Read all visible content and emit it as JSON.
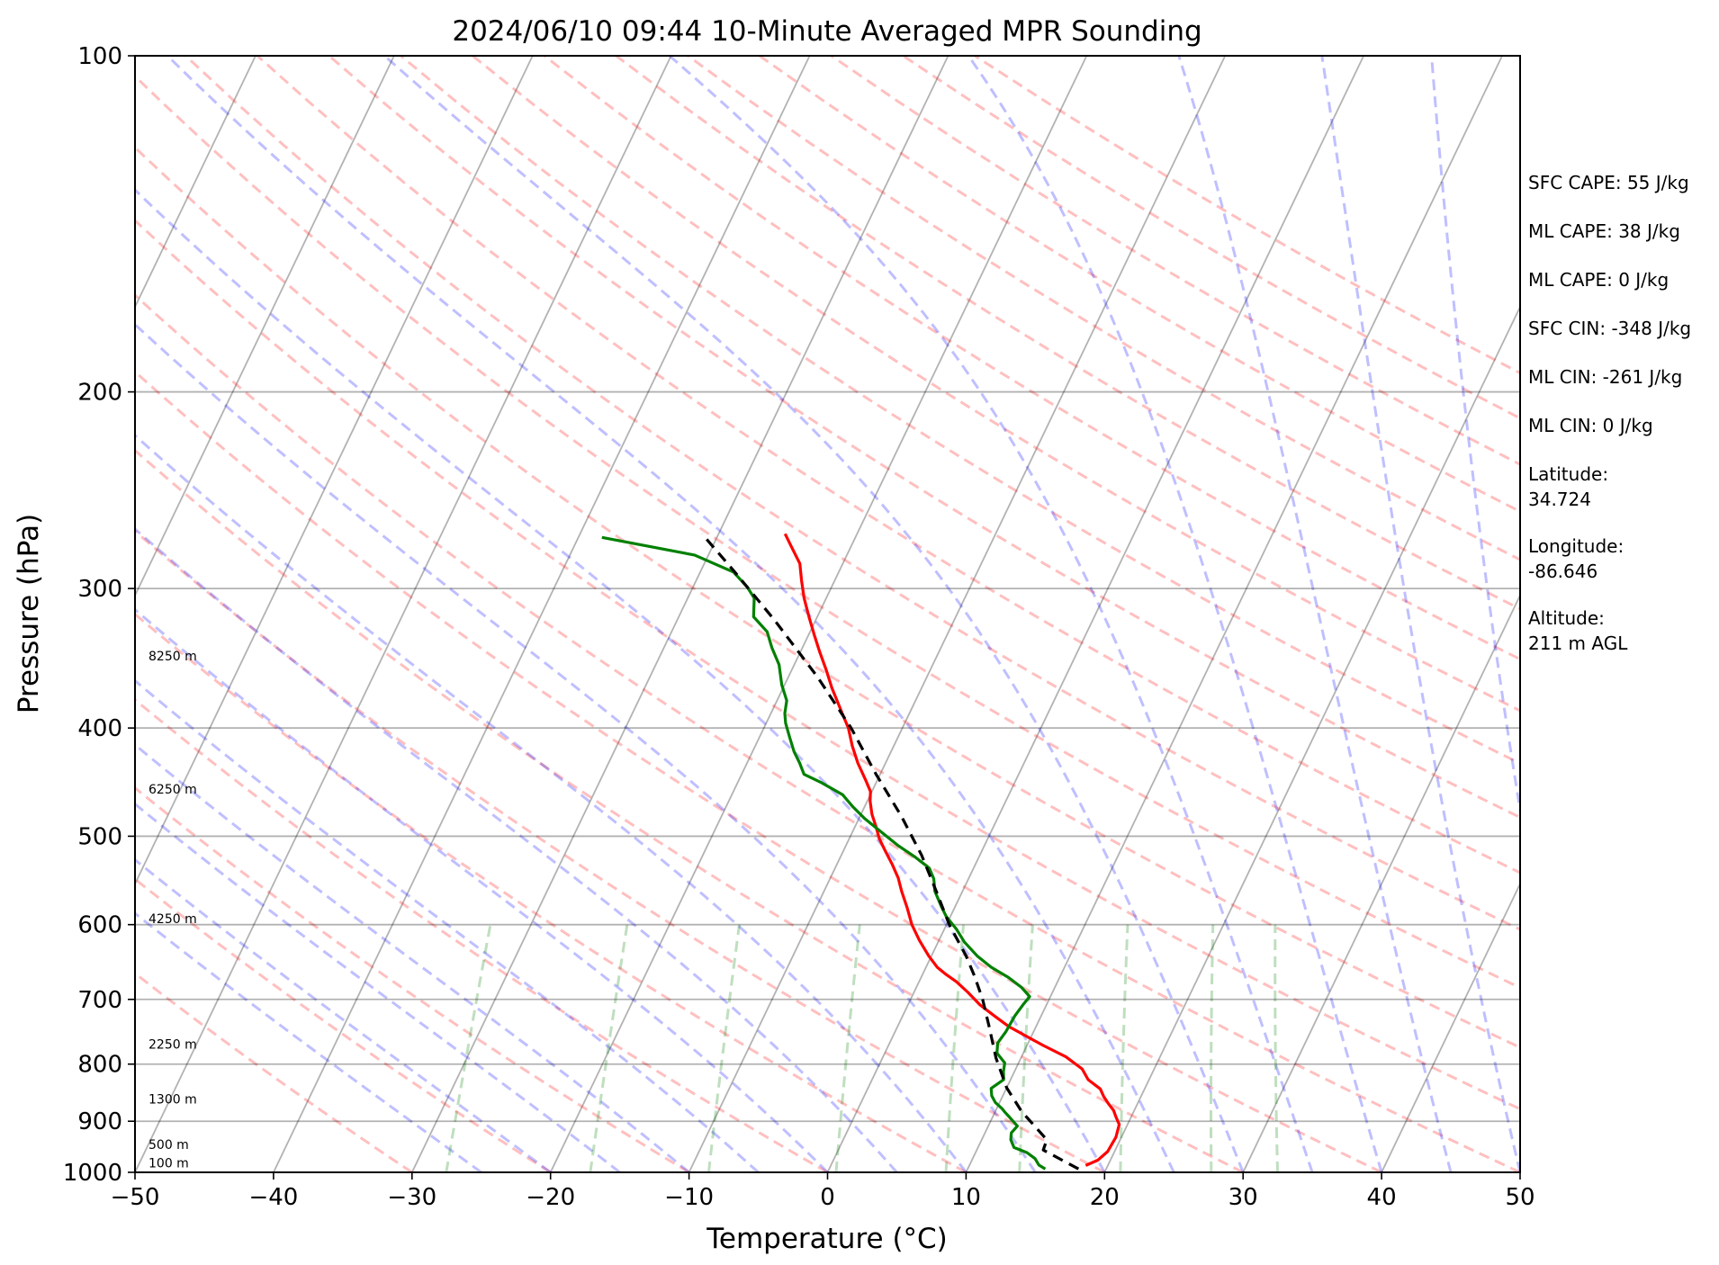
{
  "chart_data": {
    "type": "line",
    "title": "2024/06/10 09:44 10-Minute Averaged MPR Sounding",
    "xlabel": "Temperature (°C)",
    "ylabel": "Pressure (hPa)",
    "xlim": [
      -50,
      50
    ],
    "ylim": [
      1000,
      100
    ],
    "y_scale": "log",
    "skew_t": true,
    "grid": true,
    "x_ticks": [
      "−50",
      "−40",
      "−30",
      "−20",
      "−10",
      "0",
      "10",
      "20",
      "30",
      "40",
      "50"
    ],
    "y_ticks": [
      "100",
      "200",
      "300",
      "400",
      "500",
      "600",
      "700",
      "800",
      "900",
      "1000"
    ],
    "height_labels": [
      {
        "text": "100 m",
        "p": 990
      },
      {
        "text": "500 m",
        "p": 953
      },
      {
        "text": "1300 m",
        "p": 868
      },
      {
        "text": "2250 m",
        "p": 775
      },
      {
        "text": "4250 m",
        "p": 598
      },
      {
        "text": "6250 m",
        "p": 458
      },
      {
        "text": "8250 m",
        "p": 348
      }
    ],
    "annotations": [
      [
        "SFC CAPE: 55 J/kg"
      ],
      [
        "ML CAPE: 38 J/kg"
      ],
      [
        "ML CAPE: 0 J/kg"
      ],
      [
        "SFC CIN: -348 J/kg"
      ],
      [
        "ML CIN: -261 J/kg"
      ],
      [
        "ML CIN: 0 J/kg"
      ],
      [
        "Latitude:",
        "34.724"
      ],
      [
        "Longitude:",
        "-86.646"
      ],
      [
        "Altitude:",
        "211 m AGL"
      ]
    ],
    "series": [
      {
        "role": "temperature",
        "color": "#ff0000",
        "style": "solid",
        "points": [
          [
            986,
            18.4
          ],
          [
            975,
            19.1
          ],
          [
            958,
            19.5
          ],
          [
            930,
            19.6
          ],
          [
            906,
            19.4
          ],
          [
            892,
            18.9
          ],
          [
            880,
            18.5
          ],
          [
            868,
            17.9
          ],
          [
            855,
            17.3
          ],
          [
            842,
            16.8
          ],
          [
            826,
            15.6
          ],
          [
            808,
            14.8
          ],
          [
            788,
            13.2
          ],
          [
            770,
            11.2
          ],
          [
            755,
            9.6
          ],
          [
            740,
            8.0
          ],
          [
            724,
            6.6
          ],
          [
            708,
            5.2
          ],
          [
            690,
            3.9
          ],
          [
            675,
            2.7
          ],
          [
            665,
            1.7
          ],
          [
            655,
            0.8
          ],
          [
            640,
            -0.2
          ],
          [
            620,
            -1.4
          ],
          [
            600,
            -2.5
          ],
          [
            580,
            -3.4
          ],
          [
            560,
            -4.4
          ],
          [
            545,
            -5.1
          ],
          [
            530,
            -6.0
          ],
          [
            515,
            -7.0
          ],
          [
            503,
            -7.8
          ],
          [
            490,
            -8.5
          ],
          [
            478,
            -9.2
          ],
          [
            465,
            -9.8
          ],
          [
            456,
            -10.1
          ],
          [
            446,
            -10.8
          ],
          [
            430,
            -12.0
          ],
          [
            415,
            -13.0
          ],
          [
            400,
            -13.9
          ],
          [
            385,
            -15.1
          ],
          [
            368,
            -16.5
          ],
          [
            355,
            -17.5
          ],
          [
            342,
            -18.6
          ],
          [
            330,
            -19.6
          ],
          [
            318,
            -20.6
          ],
          [
            306,
            -21.6
          ],
          [
            295,
            -22.4
          ],
          [
            285,
            -23.1
          ],
          [
            276,
            -24.2
          ],
          [
            268,
            -25.2
          ]
        ]
      },
      {
        "role": "dewpoint",
        "color": "#008000",
        "style": "solid",
        "points": [
          [
            993,
            15.6
          ],
          [
            985,
            15.0
          ],
          [
            972,
            14.5
          ],
          [
            960,
            13.7
          ],
          [
            950,
            12.6
          ],
          [
            935,
            12.1
          ],
          [
            922,
            11.9
          ],
          [
            909,
            12.1
          ],
          [
            892,
            11.2
          ],
          [
            883,
            10.7
          ],
          [
            877,
            10.4
          ],
          [
            866,
            9.7
          ],
          [
            854,
            9.2
          ],
          [
            841,
            8.9
          ],
          [
            826,
            9.5
          ],
          [
            812,
            9.2
          ],
          [
            798,
            9.0
          ],
          [
            782,
            8.1
          ],
          [
            766,
            7.8
          ],
          [
            748,
            8.0
          ],
          [
            724,
            8.1
          ],
          [
            708,
            8.3
          ],
          [
            696,
            8.5
          ],
          [
            683,
            7.6
          ],
          [
            669,
            6.3
          ],
          [
            655,
            4.7
          ],
          [
            640,
            3.3
          ],
          [
            622,
            1.9
          ],
          [
            606,
            0.9
          ],
          [
            590,
            -0.3
          ],
          [
            578,
            -1.0
          ],
          [
            560,
            -2.0
          ],
          [
            546,
            -2.5
          ],
          [
            534,
            -3.2
          ],
          [
            522,
            -4.6
          ],
          [
            510,
            -6.2
          ],
          [
            495,
            -8.0
          ],
          [
            482,
            -9.6
          ],
          [
            470,
            -10.9
          ],
          [
            459,
            -12.0
          ],
          [
            448,
            -13.9
          ],
          [
            440,
            -15.5
          ],
          [
            430,
            -16.2
          ],
          [
            420,
            -17.0
          ],
          [
            408,
            -17.8
          ],
          [
            396,
            -18.6
          ],
          [
            388,
            -19.0
          ],
          [
            378,
            -19.3
          ],
          [
            366,
            -20.2
          ],
          [
            351,
            -21.1
          ],
          [
            339,
            -22.2
          ],
          [
            328,
            -23.1
          ],
          [
            318,
            -24.6
          ],
          [
            306,
            -25.2
          ],
          [
            299,
            -26.1
          ],
          [
            290,
            -27.6
          ],
          [
            280,
            -31.0
          ],
          [
            270,
            -38.3
          ]
        ]
      },
      {
        "role": "parcel",
        "color": "#000000",
        "style": "dashed",
        "points": [
          [
            993,
            18.0
          ],
          [
            975,
            16.5
          ],
          [
            955,
            14.8
          ],
          [
            935,
            14.7
          ],
          [
            910,
            13.4
          ],
          [
            882,
            11.9
          ],
          [
            840,
            10.0
          ],
          [
            790,
            8.2
          ],
          [
            740,
            6.6
          ],
          [
            700,
            5.2
          ],
          [
            667,
            3.8
          ],
          [
            640,
            2.5
          ],
          [
            600,
            0.2
          ],
          [
            560,
            -1.9
          ],
          [
            520,
            -4.2
          ],
          [
            480,
            -7.0
          ],
          [
            440,
            -10.3
          ],
          [
            400,
            -13.7
          ],
          [
            360,
            -17.9
          ],
          [
            320,
            -23.0
          ],
          [
            290,
            -27.5
          ],
          [
            268,
            -31.2
          ]
        ]
      }
    ],
    "reference_lines": {
      "dry_adiabats": {
        "color": "#ff0000",
        "style": "dashed",
        "opacity": 0.25,
        "theta_start_c": -30,
        "theta_end_c": 200,
        "step": 10
      },
      "moist_adiabats": {
        "color": "#0000ff",
        "style": "dashed",
        "opacity": 0.25,
        "start_temps_c": [
          -25,
          -20,
          -15,
          -10,
          -5,
          0,
          5,
          10,
          15,
          20,
          25,
          30,
          35,
          40,
          45,
          50,
          55,
          60,
          65,
          70,
          75,
          80,
          85
        ]
      },
      "mixing_ratio": {
        "color": "#008000",
        "style": "dashed",
        "opacity": 0.25,
        "values_gkg": [
          0.4,
          1,
          2,
          4,
          7,
          10,
          16,
          24,
          32
        ],
        "top_p": 600
      },
      "isotherms": {
        "color": "#000000",
        "style": "solid",
        "opacity": 0.3,
        "step": 10
      }
    }
  }
}
